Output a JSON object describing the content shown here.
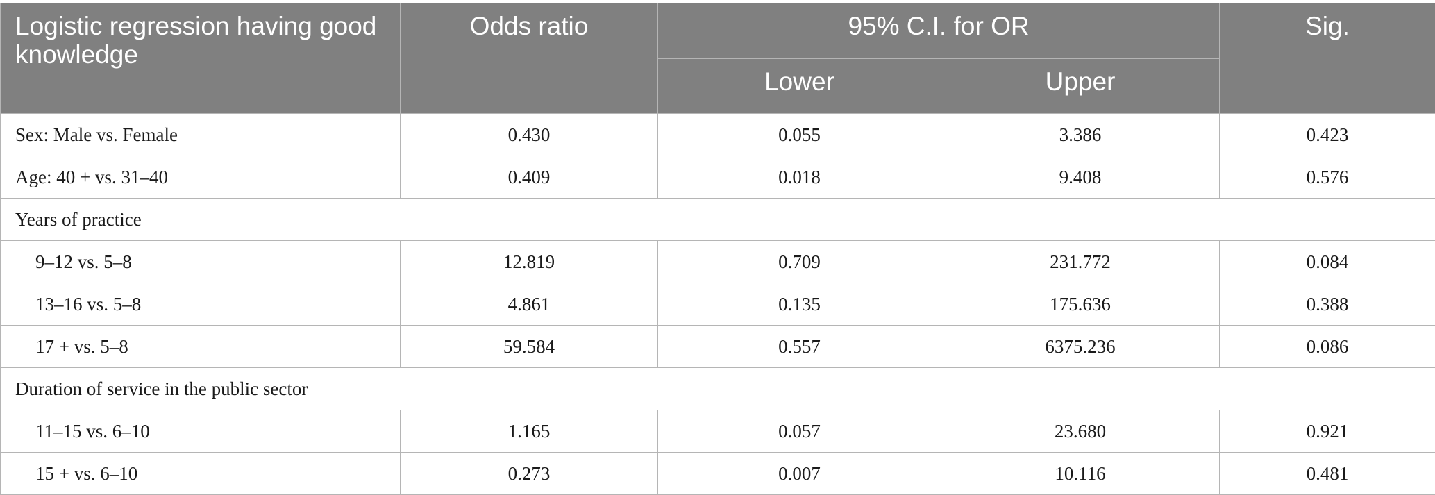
{
  "header": {
    "col0": "Logistic regression having good knowledge",
    "col1": "Odds ratio",
    "ci_group": "95% C.I. for OR",
    "lower": "Lower",
    "upper": "Upper",
    "sig": "Sig."
  },
  "rows": [
    {
      "label": "Sex: Male vs. Female",
      "or": "0.430",
      "lower": "0.055",
      "upper": "3.386",
      "sig": "0.423"
    },
    {
      "label": "Age: 40 + vs. 31–40",
      "or": "0.409",
      "lower": "0.018",
      "upper": "9.408",
      "sig": "0.576"
    },
    {
      "section": "Years of practice"
    },
    {
      "label": "9–12 vs. 5–8",
      "or": "12.819",
      "lower": "0.709",
      "upper": "231.772",
      "sig": "0.084"
    },
    {
      "label": "13–16 vs. 5–8",
      "or": "4.861",
      "lower": "0.135",
      "upper": "175.636",
      "sig": "0.388"
    },
    {
      "label": "17 + vs. 5–8",
      "or": "59.584",
      "lower": "0.557",
      "upper": "6375.236",
      "sig": "0.086"
    },
    {
      "section": "Duration of service in the public sector"
    },
    {
      "label": "11–15 vs. 6–10",
      "or": "1.165",
      "lower": "0.057",
      "upper": "23.680",
      "sig": "0.921"
    },
    {
      "label": "15 + vs. 6–10",
      "or": "0.273",
      "lower": "0.007",
      "upper": "10.116",
      "sig": "0.481"
    }
  ]
}
